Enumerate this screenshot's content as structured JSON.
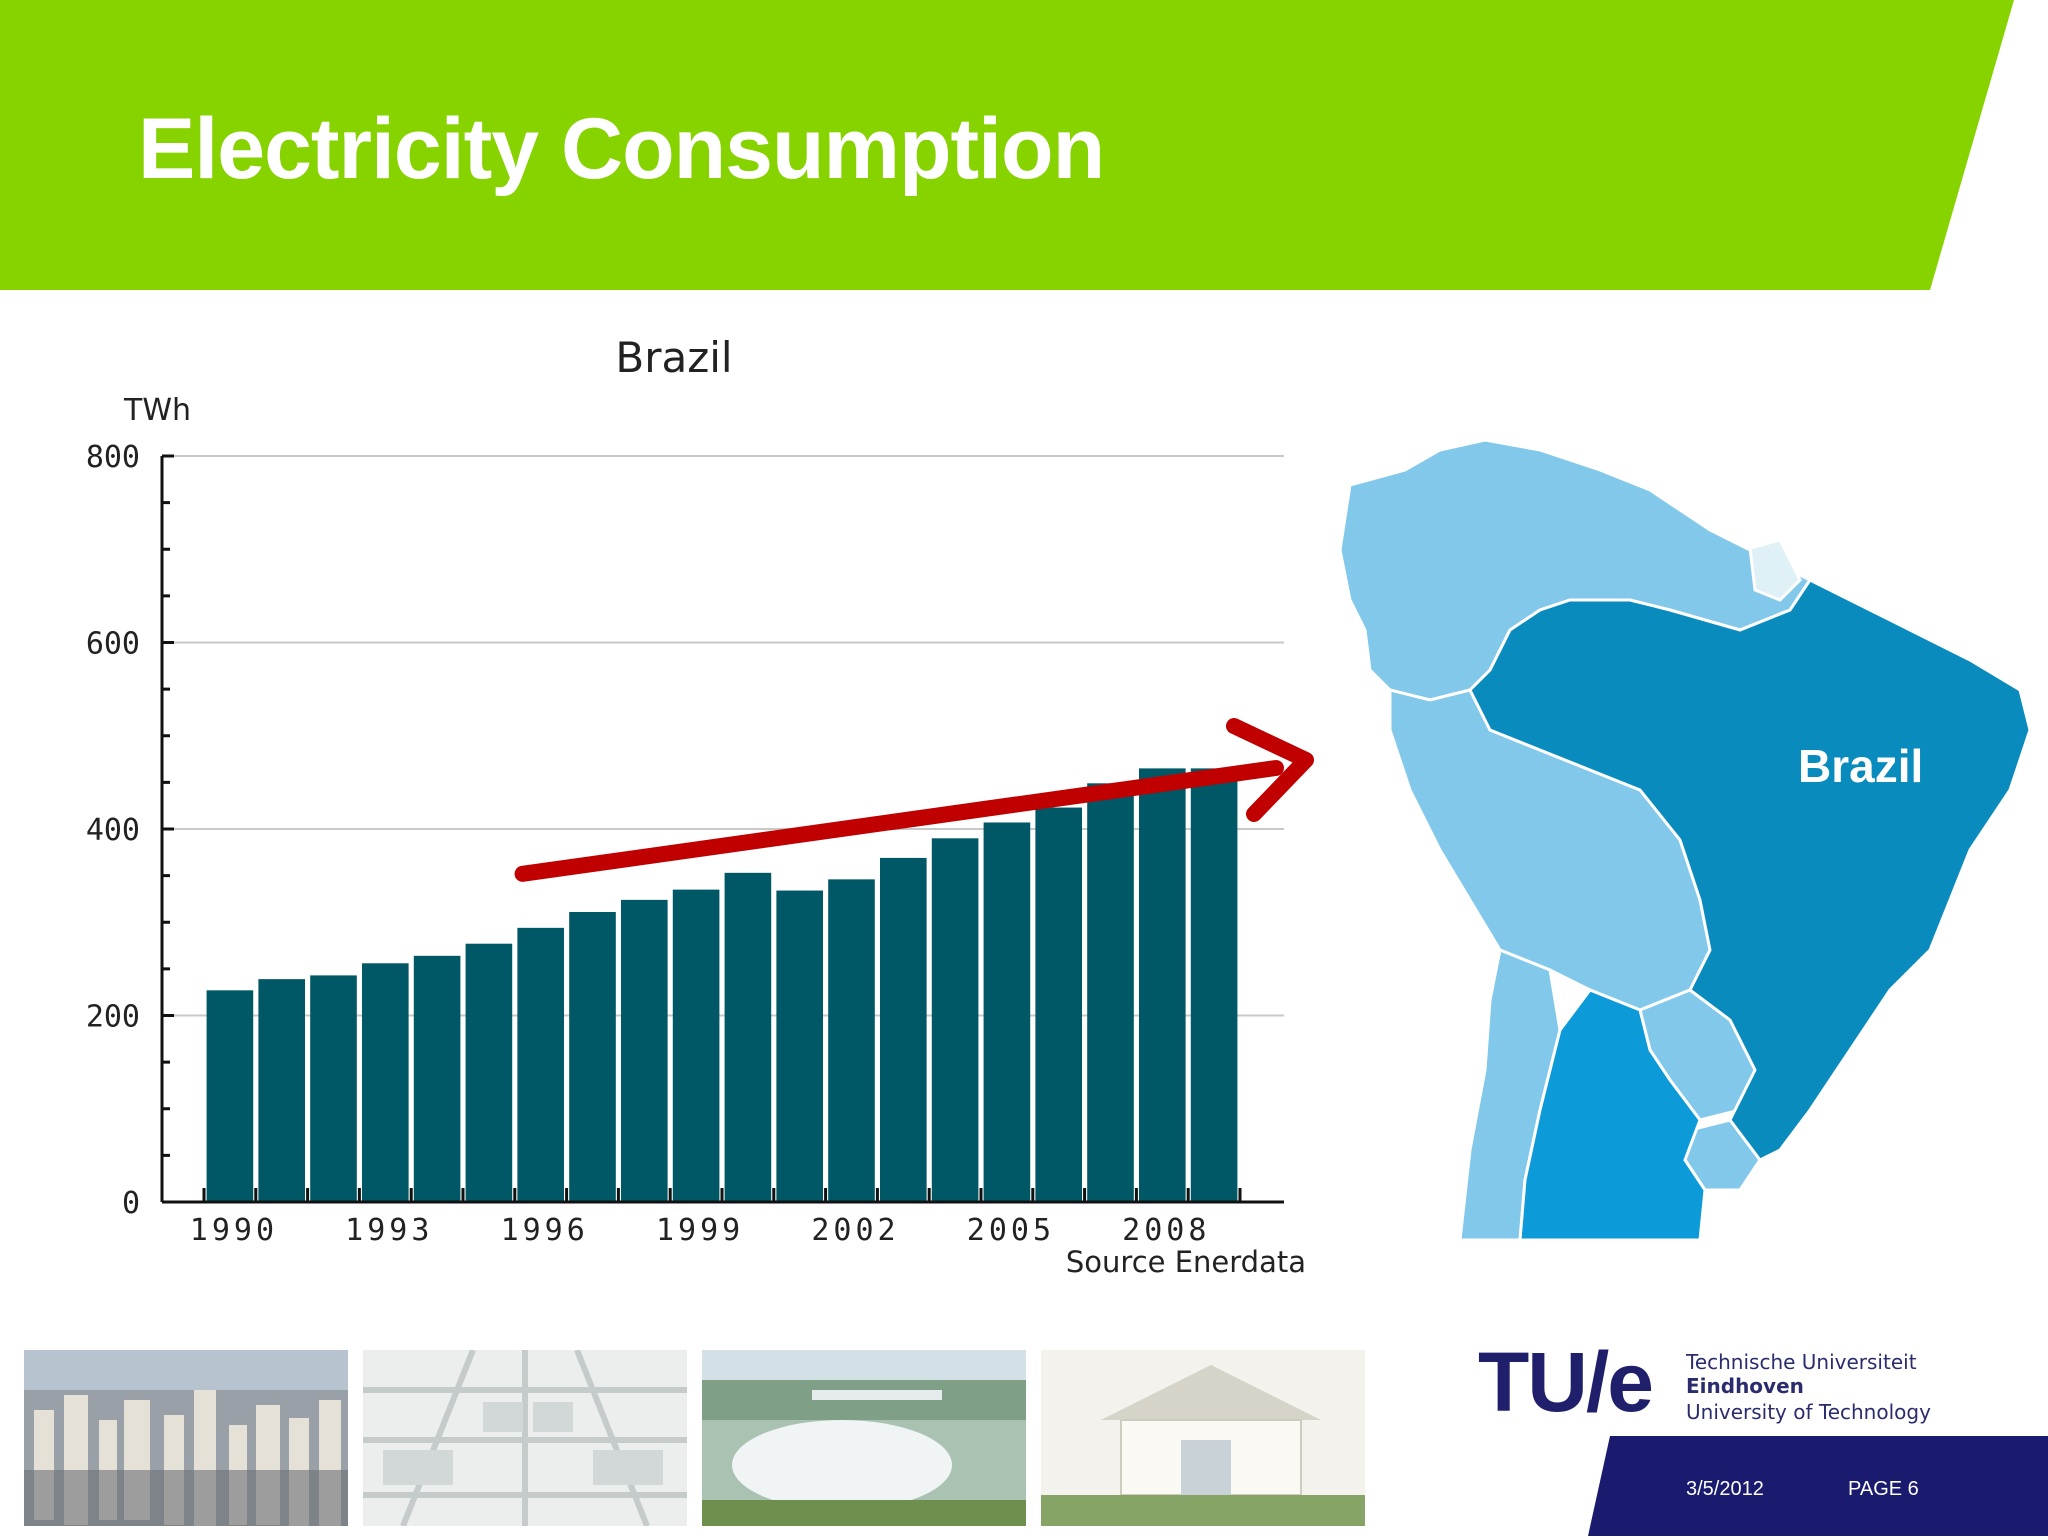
{
  "slide": {
    "title": "Electricity Consumption",
    "header_color": "#86d300"
  },
  "chart_data": {
    "type": "bar",
    "title": "Brazil",
    "ylabel": "TWh",
    "xlabel": "",
    "source_note": "Source Enerdata",
    "categories": [
      "1990",
      "1991",
      "1992",
      "1993",
      "1994",
      "1995",
      "1996",
      "1997",
      "1998",
      "1999",
      "2000",
      "2001",
      "2002",
      "2003",
      "2004",
      "2005",
      "2006",
      "2007",
      "2008",
      "2009"
    ],
    "x_tick_labels": [
      "1990",
      "1993",
      "1996",
      "1999",
      "2002",
      "2005",
      "2008"
    ],
    "values": [
      227,
      239,
      243,
      256,
      264,
      277,
      294,
      311,
      324,
      335,
      353,
      334,
      346,
      369,
      390,
      407,
      423,
      449,
      465,
      465
    ],
    "ylim": [
      0,
      800
    ],
    "y_ticks": [
      0,
      200,
      400,
      600,
      800
    ],
    "grid": true,
    "bar_color": "#005866",
    "annotation": "trend arrow from 1996 to beyond 2009",
    "arrow_color": "#c00000"
  },
  "map": {
    "label": "Brazil",
    "highlight_color": "#0a8bbd",
    "other_color": "#82c8ea",
    "argentina_color": "#0d9ad8"
  },
  "photos": [
    {
      "name": "city-skyline-photo",
      "colors": [
        "#8a8a8a",
        "#c9c3b8",
        "#6b7a8c"
      ]
    },
    {
      "name": "solar-panels-photo",
      "colors": [
        "#dcdcdc",
        "#eef0f0",
        "#bfc4c4"
      ]
    },
    {
      "name": "dam-waterfall-photo",
      "colors": [
        "#9cb6a6",
        "#e8eef0",
        "#6d8f55"
      ]
    },
    {
      "name": "solar-house-photo",
      "colors": [
        "#f0efe8",
        "#d8d4c8",
        "#7a9a58"
      ]
    }
  ],
  "logo": {
    "mark": "TU/e",
    "line1": "Technische Universiteit",
    "line2": "Eindhoven",
    "line3": "University of Technology"
  },
  "footer": {
    "date": "3/5/2012",
    "page": "PAGE 6",
    "band_color": "#1a1a6e"
  }
}
